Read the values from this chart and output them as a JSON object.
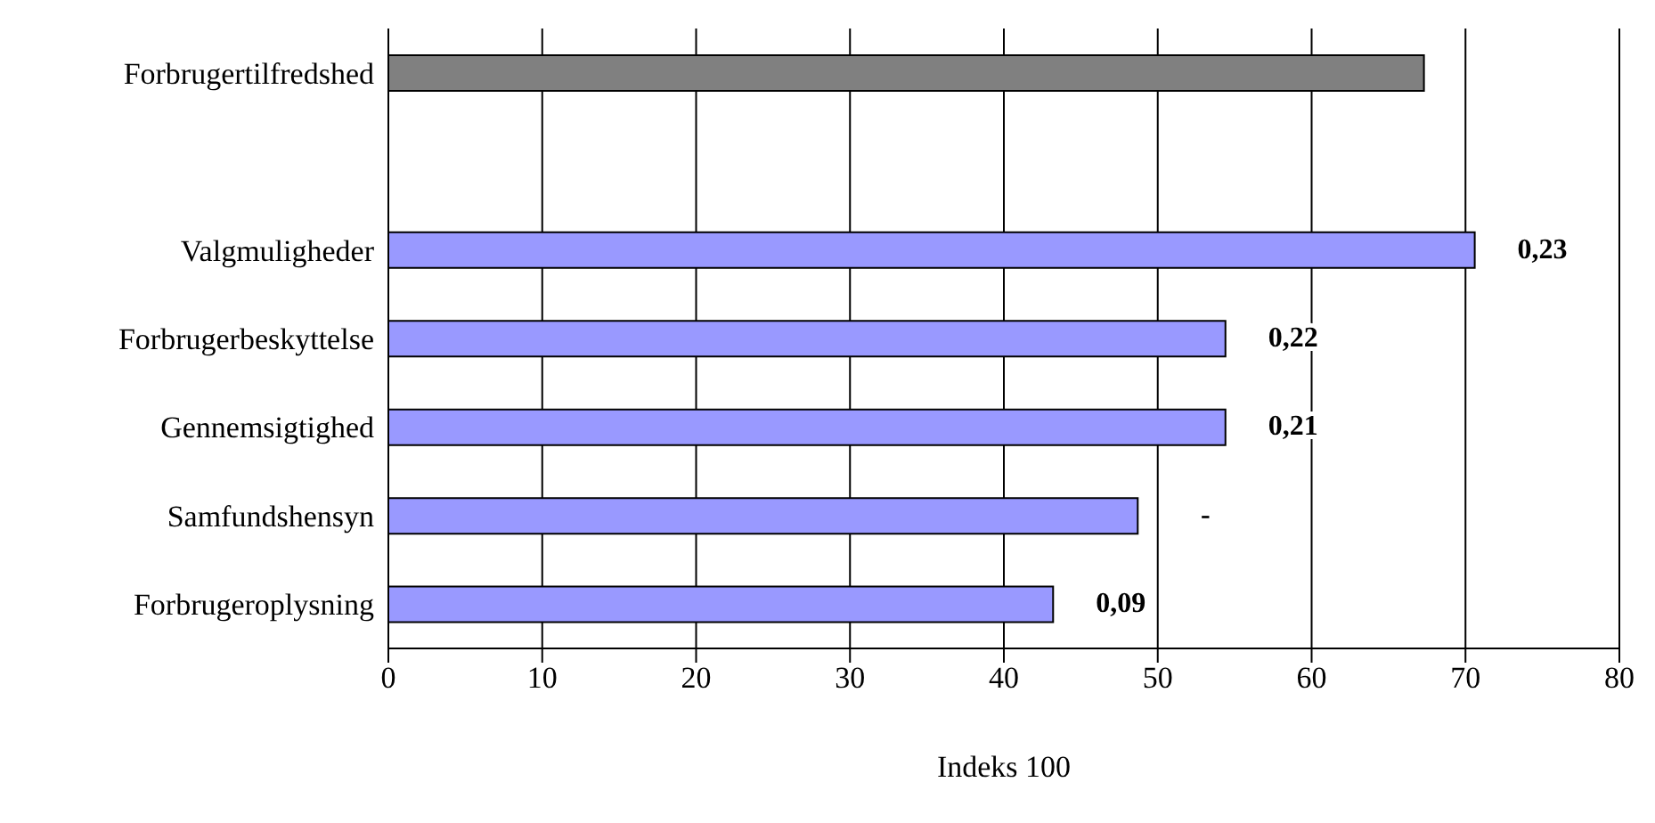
{
  "chart_data": {
    "type": "bar",
    "orientation": "horizontal",
    "xlabel": "Indeks 100",
    "categories": [
      "Forbrugertilfredshed",
      null,
      "Valgmuligheder",
      "Forbrugerbeskyttelse",
      "Gennemsigtighed",
      "Samfundshensyn",
      "Forbrugeroplysning"
    ],
    "values": [
      67.3,
      null,
      70.6,
      54.4,
      54.4,
      48.7,
      43.2
    ],
    "colors": [
      "#808080",
      "#9999ff",
      "#9999ff",
      "#9999ff",
      "#9999ff",
      "#9999ff",
      "#9999ff"
    ],
    "annotations": [
      {
        "text": "0,23",
        "x": 70.6,
        "y": "Valgmuligheder"
      },
      {
        "text": "0,22",
        "x": 54.4,
        "y": "Forbrugerbeskyttelse"
      },
      {
        "text": "0,21",
        "x": 54.4,
        "y": "Gennemsigtighed"
      },
      {
        "text": "-",
        "x": 48.7,
        "y": "Samfundshensyn"
      },
      {
        "text": "0,09",
        "x": 43.2,
        "y": "Forbrugeroplysning"
      }
    ],
    "xlim": [
      0,
      80
    ],
    "xticks": [
      0,
      10,
      20,
      30,
      40,
      50,
      60,
      70,
      80
    ],
    "grid": "x",
    "legend": false
  }
}
